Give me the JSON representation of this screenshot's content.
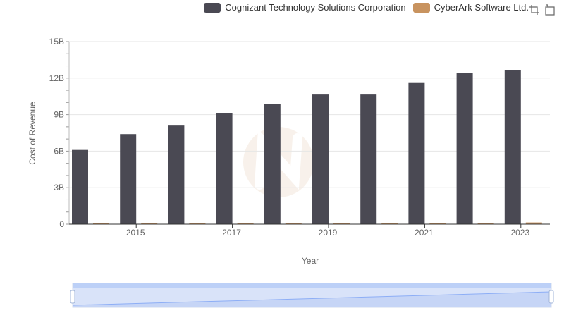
{
  "legend": {
    "items": [
      {
        "label": "Cognizant Technology Solutions Corporation",
        "color": "#4a4953"
      },
      {
        "label": "CyberArk Software Ltd.",
        "color": "#c8935f"
      }
    ]
  },
  "toolbox": {
    "icons": [
      "zoom-icon",
      "zoom-reset-icon"
    ]
  },
  "chart_data": {
    "type": "bar",
    "xlabel": "Year",
    "ylabel": "Cost of Revenue",
    "categories": [
      "2014",
      "2015",
      "2016",
      "2017",
      "2018",
      "2019",
      "2020",
      "2021",
      "2022",
      "2023"
    ],
    "x_tick_labels": [
      "2015",
      "2017",
      "2019",
      "2021",
      "2023"
    ],
    "y_tick_labels": [
      "0",
      "3B",
      "6B",
      "9B",
      "12B",
      "15B"
    ],
    "ylim": [
      0,
      15000000000
    ],
    "grid": true,
    "legend_position": "top-right",
    "series": [
      {
        "name": "Cognizant Technology Solutions Corporation",
        "color": "#4a4953",
        "values": [
          6100000000,
          7400000000,
          8100000000,
          9150000000,
          9850000000,
          10650000000,
          10650000000,
          11600000000,
          12450000000,
          12650000000
        ]
      },
      {
        "name": "CyberArk Software Ltd.",
        "color": "#c8935f",
        "values": [
          12000000,
          20000000,
          25000000,
          35000000,
          50000000,
          70000000,
          75000000,
          85000000,
          115000000,
          140000000
        ]
      }
    ],
    "data_zoom": {
      "start": 0,
      "end": 100
    }
  }
}
